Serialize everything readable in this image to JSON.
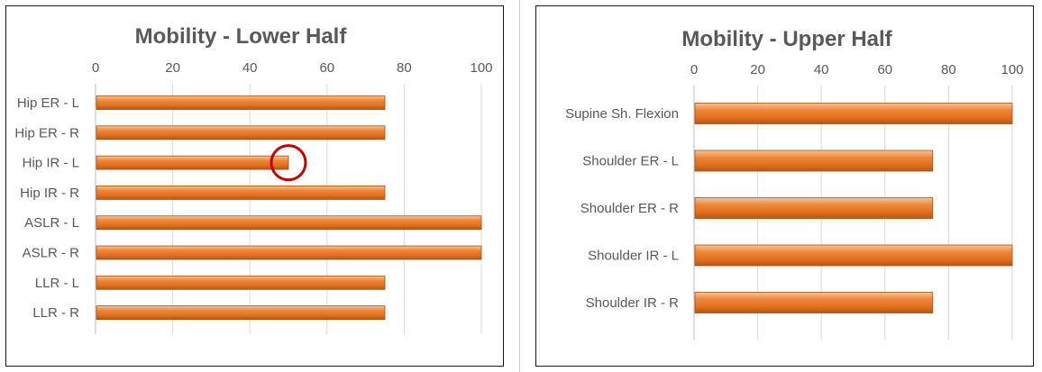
{
  "chart_data": [
    {
      "type": "bar",
      "orientation": "horizontal",
      "title": "Mobility - Lower Half",
      "xlabel": "",
      "ylabel": "",
      "xlim": [
        0,
        100
      ],
      "ticks": [
        "0",
        "20",
        "40",
        "60",
        "80",
        "100"
      ],
      "categories": [
        "Hip ER - L",
        "Hip ER - R",
        "Hip IR - L",
        "Hip IR - R",
        "ASLR - L",
        "ASLR - R",
        "LLR - L",
        "LLR - R"
      ],
      "values": [
        75,
        75,
        50,
        75,
        100,
        100,
        75,
        75
      ],
      "axis_position": "top",
      "grid": true,
      "bar_color": "#ed7d31",
      "annotation": {
        "shape": "circle",
        "target_category": "Hip IR - L",
        "color": "#c00000"
      }
    },
    {
      "type": "bar",
      "orientation": "horizontal",
      "title": "Mobility - Upper Half",
      "xlabel": "",
      "ylabel": "",
      "xlim": [
        0,
        100
      ],
      "ticks": [
        "0",
        "20",
        "40",
        "60",
        "80",
        "100"
      ],
      "categories": [
        "Supine Sh. Flexion",
        "Shoulder ER - L",
        "Shoulder ER - R",
        "Shoulder IR - L",
        "Shoulder IR - R"
      ],
      "values": [
        100,
        75,
        75,
        100,
        75
      ],
      "axis_position": "top",
      "grid": true,
      "bar_color": "#ed7d31"
    }
  ]
}
